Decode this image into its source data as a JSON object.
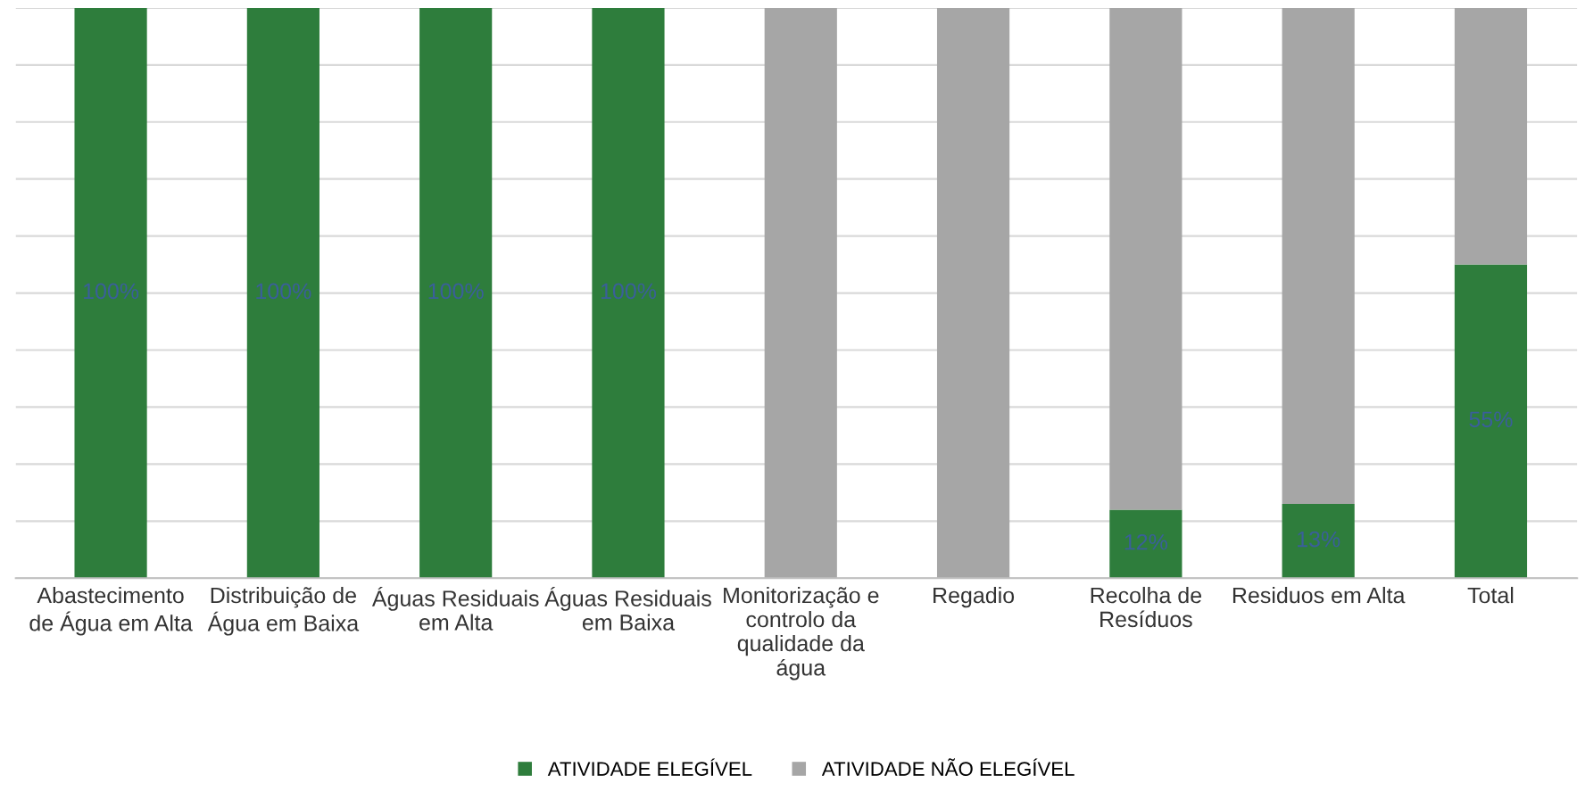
{
  "chart_data": {
    "type": "bar",
    "stacked": true,
    "categories": [
      "Abastecimento\nde Água em Alta",
      "Distribuição de\nÁgua em Baixa",
      "Águas Residuais\nem Alta",
      "Águas Residuais\nem Baixa",
      "Monitorização e\ncontrolo da\nqualidade da\nágua",
      "Regadio",
      "Recolha de\nResíduos",
      "Residuos em Alta",
      "Total"
    ],
    "series": [
      {
        "name": "ATIVIDADE ELEGÍVEL",
        "color": "#2e7d3c",
        "values": [
          100,
          100,
          100,
          100,
          0,
          0,
          12,
          13,
          55
        ],
        "value_labels": [
          "100%",
          "100%",
          "100%",
          "100%",
          null,
          null,
          "12%",
          "13%",
          "55%"
        ]
      },
      {
        "name": "ATIVIDADE NÃO ELEGÍVEL",
        "color": "#a6a6a6",
        "values": [
          0,
          0,
          0,
          0,
          100,
          100,
          88,
          87,
          45
        ]
      }
    ],
    "ylim": [
      0,
      100
    ],
    "yticks": [
      {
        "value": 0,
        "label": null
      },
      {
        "value": 10,
        "label": null
      },
      {
        "value": 20,
        "label": null
      },
      {
        "value": 30,
        "label": null
      },
      {
        "value": 40,
        "label": null
      },
      {
        "value": 50,
        "label": null
      },
      {
        "value": 60,
        "label": null
      },
      {
        "value": 70,
        "label": null
      },
      {
        "value": 80,
        "label": null
      },
      {
        "value": 90,
        "label": null
      },
      {
        "value": 100,
        "label": null
      }
    ],
    "tick_labels": "x",
    "grid": "y",
    "legend": "bottom"
  }
}
